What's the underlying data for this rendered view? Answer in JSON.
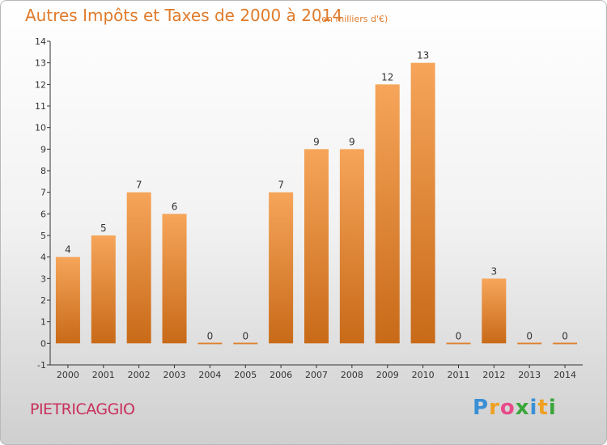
{
  "title": "Autres Impôts et Taxes de 2000 à 2014",
  "subtitle": "(en milliers d'€)",
  "commune": "PIETRICAGGIO",
  "logo": {
    "letters": [
      "P",
      "r",
      "o",
      "x",
      "i",
      "t",
      "i"
    ],
    "colors": [
      "#3a8fd6",
      "#f0a020",
      "#e84a8a",
      "#3aa63a",
      "#3a8fd6",
      "#f0a020",
      "#3aa63a"
    ]
  },
  "colors": {
    "bar_top": "#f6a55a",
    "bar_bottom": "#c86a18",
    "title": "#e07b2b",
    "commune": "#c8305c",
    "axis": "#333333"
  },
  "chart_data": {
    "type": "bar",
    "title": "Autres Impôts et Taxes de 2000 à 2014",
    "subtitle": "(en milliers d'€)",
    "xlabel": "",
    "ylabel": "",
    "categories": [
      "2000",
      "2001",
      "2002",
      "2003",
      "2004",
      "2005",
      "2006",
      "2007",
      "2008",
      "2009",
      "2010",
      "2011",
      "2012",
      "2013",
      "2014"
    ],
    "values": [
      4,
      5,
      7,
      6,
      0,
      0,
      7,
      9,
      9,
      12,
      13,
      0,
      3,
      0,
      0
    ],
    "ylim": [
      -1,
      14
    ],
    "yticks": [
      "-1",
      "0",
      "1",
      "2",
      "3",
      "4",
      "5",
      "6",
      "7",
      "8",
      "9",
      "10",
      "11",
      "12",
      "13",
      "14"
    ],
    "grid": false,
    "legend": "none"
  }
}
